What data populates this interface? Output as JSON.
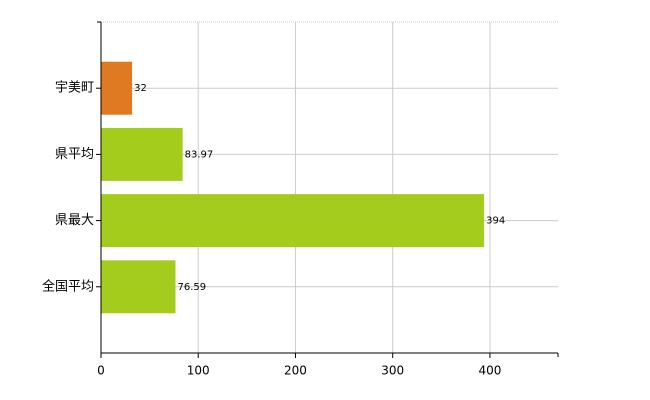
{
  "chart_data": {
    "type": "barh",
    "categories": [
      "宇美町",
      "県平均",
      "県最大",
      "全国平均"
    ],
    "values": [
      32,
      83.97,
      394,
      76.59
    ],
    "colors": [
      "#e07a22",
      "#a3cc1c",
      "#a3cc1c",
      "#a3cc1c"
    ],
    "xlim": [
      0,
      470
    ],
    "xticks": [
      0,
      100,
      200,
      300,
      400
    ],
    "grid": true
  }
}
